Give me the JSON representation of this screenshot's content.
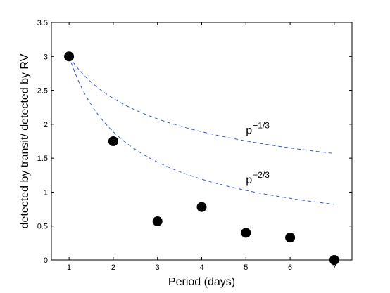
{
  "chart_data": {
    "type": "scatter",
    "title": "",
    "xlabel": "Period (days)",
    "ylabel": "detected by transit/ detected by RV",
    "xlim": [
      0.6,
      7.4
    ],
    "ylim": [
      0,
      3.5
    ],
    "xticks": [
      1,
      2,
      3,
      4,
      5,
      6,
      7
    ],
    "yticks": [
      0,
      0.5,
      1,
      1.5,
      2,
      2.5,
      3,
      3.5
    ],
    "xtick_labels": [
      "1",
      "2",
      "3",
      "4",
      "5",
      "6",
      "7"
    ],
    "ytick_labels": [
      "0",
      "0.5",
      "1",
      "1.5",
      "2",
      "2.5",
      "3",
      "3.5"
    ],
    "grid": false,
    "points": {
      "x": [
        1,
        2,
        3,
        4,
        5,
        6,
        7
      ],
      "y": [
        3.0,
        1.75,
        0.57,
        0.78,
        0.4,
        0.33,
        0.0
      ],
      "color": "#000000"
    },
    "curves": [
      {
        "label_base": "p",
        "label_exp": "−1/3",
        "exponent": -0.3333,
        "scale": 3.0,
        "x_range": [
          1,
          7
        ],
        "color": "#3355dd",
        "style": "dashed"
      },
      {
        "label_base": "p",
        "label_exp": "−2/3",
        "exponent": -0.6667,
        "scale": 3.0,
        "x_range": [
          1,
          7
        ],
        "color": "#3355dd",
        "style": "dashed"
      }
    ]
  }
}
